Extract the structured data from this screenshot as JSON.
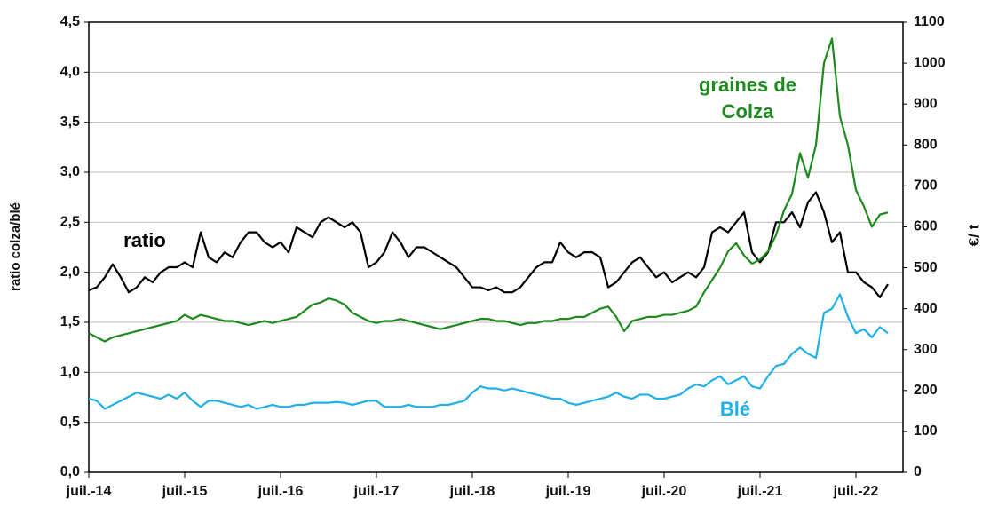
{
  "chart_data": {
    "type": "line",
    "y_label": "ratio colza/blé",
    "y2_label": "€/ t",
    "annotations": [
      "ratio",
      "graines de",
      "Colza",
      "Blé"
    ],
    "x": [
      "2014-07",
      "2014-08",
      "2014-09",
      "2014-10",
      "2014-11",
      "2014-12",
      "2015-01",
      "2015-02",
      "2015-03",
      "2015-04",
      "2015-05",
      "2015-06",
      "2015-07",
      "2015-08",
      "2015-09",
      "2015-10",
      "2015-11",
      "2015-12",
      "2016-01",
      "2016-02",
      "2016-03",
      "2016-04",
      "2016-05",
      "2016-06",
      "2016-07",
      "2016-08",
      "2016-09",
      "2016-10",
      "2016-11",
      "2016-12",
      "2017-01",
      "2017-02",
      "2017-03",
      "2017-04",
      "2017-05",
      "2017-06",
      "2017-07",
      "2017-08",
      "2017-09",
      "2017-10",
      "2017-11",
      "2017-12",
      "2018-01",
      "2018-02",
      "2018-03",
      "2018-04",
      "2018-05",
      "2018-06",
      "2018-07",
      "2018-08",
      "2018-09",
      "2018-10",
      "2018-11",
      "2018-12",
      "2019-01",
      "2019-02",
      "2019-03",
      "2019-04",
      "2019-05",
      "2019-06",
      "2019-07",
      "2019-08",
      "2019-09",
      "2019-10",
      "2019-11",
      "2019-12",
      "2020-01",
      "2020-02",
      "2020-03",
      "2020-04",
      "2020-05",
      "2020-06",
      "2020-07",
      "2020-08",
      "2020-09",
      "2020-10",
      "2020-11",
      "2020-12",
      "2021-01",
      "2021-02",
      "2021-03",
      "2021-04",
      "2021-05",
      "2021-06",
      "2021-07",
      "2021-08",
      "2021-09",
      "2021-10",
      "2021-11",
      "2021-12",
      "2022-01",
      "2022-02",
      "2022-03",
      "2022-04",
      "2022-05",
      "2022-06",
      "2022-07",
      "2022-08",
      "2022-09",
      "2022-10",
      "2022-11"
    ],
    "xticks": [
      {
        "value": "2014-07",
        "label": "juil.-14"
      },
      {
        "value": "2015-07",
        "label": "juil.-15"
      },
      {
        "value": "2016-07",
        "label": "juil.-16"
      },
      {
        "value": "2017-07",
        "label": "juil.-17"
      },
      {
        "value": "2018-07",
        "label": "juil.-18"
      },
      {
        "value": "2019-07",
        "label": "juil.-19"
      },
      {
        "value": "2020-07",
        "label": "juil.-20"
      },
      {
        "value": "2021-07",
        "label": "juil.-21"
      },
      {
        "value": "2022-07",
        "label": "juil.-22"
      }
    ],
    "ylim": [
      0,
      4.5
    ],
    "yticks": [
      {
        "value": 0,
        "label": "0,0"
      },
      {
        "value": 0.5,
        "label": "0,5"
      },
      {
        "value": 1,
        "label": "1,0"
      },
      {
        "value": 1.5,
        "label": "1,5"
      },
      {
        "value": 2,
        "label": "2,0"
      },
      {
        "value": 2.5,
        "label": "2,5"
      },
      {
        "value": 3,
        "label": "3,0"
      },
      {
        "value": 3.5,
        "label": "3,5"
      },
      {
        "value": 4,
        "label": "4,0"
      },
      {
        "value": 4.5,
        "label": "4,5"
      }
    ],
    "y2lim": [
      0,
      1100
    ],
    "y2ticks": [
      0,
      100,
      200,
      300,
      400,
      500,
      600,
      700,
      800,
      900,
      1000,
      1100
    ],
    "grid": true,
    "series": [
      {
        "name": "ratio",
        "color": "#000000",
        "values": [
          1.82,
          1.85,
          1.95,
          2.08,
          1.95,
          1.8,
          1.85,
          1.95,
          1.9,
          2.0,
          2.05,
          2.05,
          2.1,
          2.05,
          2.4,
          2.15,
          2.1,
          2.2,
          2.15,
          2.3,
          2.4,
          2.4,
          2.3,
          2.25,
          2.3,
          2.2,
          2.45,
          2.4,
          2.35,
          2.5,
          2.55,
          2.5,
          2.45,
          2.5,
          2.4,
          2.05,
          2.1,
          2.2,
          2.4,
          2.3,
          2.15,
          2.25,
          2.25,
          2.2,
          2.15,
          2.1,
          2.05,
          1.95,
          1.85,
          1.85,
          1.82,
          1.85,
          1.8,
          1.8,
          1.85,
          1.95,
          2.05,
          2.1,
          2.1,
          2.3,
          2.2,
          2.15,
          2.2,
          2.2,
          2.15,
          1.85,
          1.9,
          2.0,
          2.1,
          2.15,
          2.05,
          1.95,
          2.0,
          1.9,
          1.95,
          2.0,
          1.95,
          2.05,
          2.4,
          2.45,
          2.4,
          2.5,
          2.6,
          2.2,
          2.1,
          2.2,
          2.5,
          2.5,
          2.6,
          2.45,
          2.7,
          2.8,
          2.6,
          2.3,
          2.4,
          2.0,
          2.0,
          1.9,
          1.85,
          1.75,
          1.88
        ]
      },
      {
        "name": "Colza",
        "color": "#1e8a1e",
        "axis": "y2",
        "values": [
          340,
          330,
          320,
          330,
          335,
          340,
          345,
          350,
          355,
          360,
          365,
          370,
          385,
          375,
          385,
          380,
          375,
          370,
          370,
          365,
          360,
          365,
          370,
          365,
          370,
          375,
          380,
          395,
          410,
          415,
          425,
          420,
          410,
          390,
          380,
          370,
          365,
          370,
          370,
          375,
          370,
          365,
          360,
          355,
          350,
          355,
          360,
          365,
          370,
          375,
          375,
          370,
          370,
          365,
          360,
          365,
          365,
          370,
          370,
          375,
          375,
          380,
          380,
          390,
          400,
          405,
          380,
          345,
          370,
          375,
          380,
          380,
          385,
          385,
          390,
          395,
          405,
          440,
          470,
          500,
          540,
          560,
          530,
          510,
          520,
          540,
          580,
          640,
          680,
          780,
          720,
          800,
          1000,
          1060,
          870,
          800,
          690,
          650,
          600,
          630,
          635
        ]
      },
      {
        "name": "Blé",
        "color": "#1fb0ea",
        "axis": "y2",
        "values": [
          180,
          175,
          155,
          165,
          175,
          185,
          195,
          190,
          185,
          180,
          190,
          180,
          195,
          175,
          160,
          175,
          175,
          170,
          165,
          160,
          165,
          155,
          160,
          165,
          160,
          160,
          165,
          165,
          170,
          170,
          170,
          172,
          170,
          165,
          170,
          175,
          175,
          160,
          160,
          160,
          165,
          160,
          160,
          160,
          165,
          165,
          170,
          175,
          195,
          210,
          205,
          205,
          200,
          205,
          200,
          195,
          190,
          185,
          180,
          180,
          170,
          165,
          170,
          175,
          180,
          185,
          195,
          185,
          180,
          190,
          190,
          180,
          180,
          185,
          190,
          205,
          215,
          210,
          225,
          235,
          215,
          225,
          235,
          210,
          205,
          235,
          260,
          265,
          290,
          305,
          290,
          280,
          390,
          400,
          435,
          380,
          340,
          350,
          330,
          355,
          340
        ]
      }
    ]
  }
}
